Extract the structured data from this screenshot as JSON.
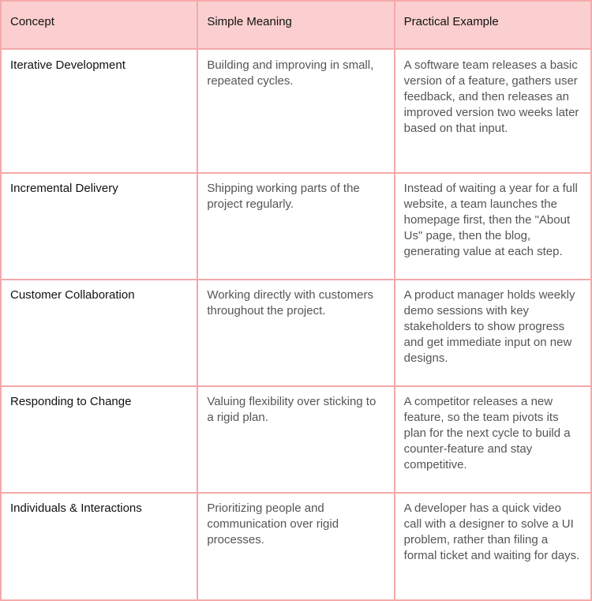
{
  "table": {
    "header": [
      "Concept",
      "Simple Meaning",
      "Practical Example"
    ],
    "rows": [
      [
        "Iterative Development",
        "Building and improving in small, repeated cycles.",
        "A software team releases a basic version of a feature, gathers user feedback, and then releases an improved version two weeks later based on that input."
      ],
      [
        "Incremental Delivery",
        "Shipping working parts of the project regularly.",
        "Instead of waiting a year for a full website, a team launches the homepage first, then the \"About Us\" page, then the blog, generating value at each step."
      ],
      [
        "Customer Collaboration",
        "Working directly with customers throughout the project.",
        "A product manager holds weekly demo sessions with key stakeholders to show progress and get immediate input on new designs."
      ],
      [
        "Responding to Change",
        "Valuing flexibility over sticking to a rigid plan.",
        "A competitor releases a new feature, so the team pivots its plan for the next cycle to build a counter-feature and stay competitive."
      ],
      [
        "Individuals & Interactions",
        "Prioritizing people and communication over rigid processes.",
        "A developer has a quick video call with a designer to solve a UI problem, rather than filing a formal ticket and waiting for days."
      ]
    ]
  }
}
